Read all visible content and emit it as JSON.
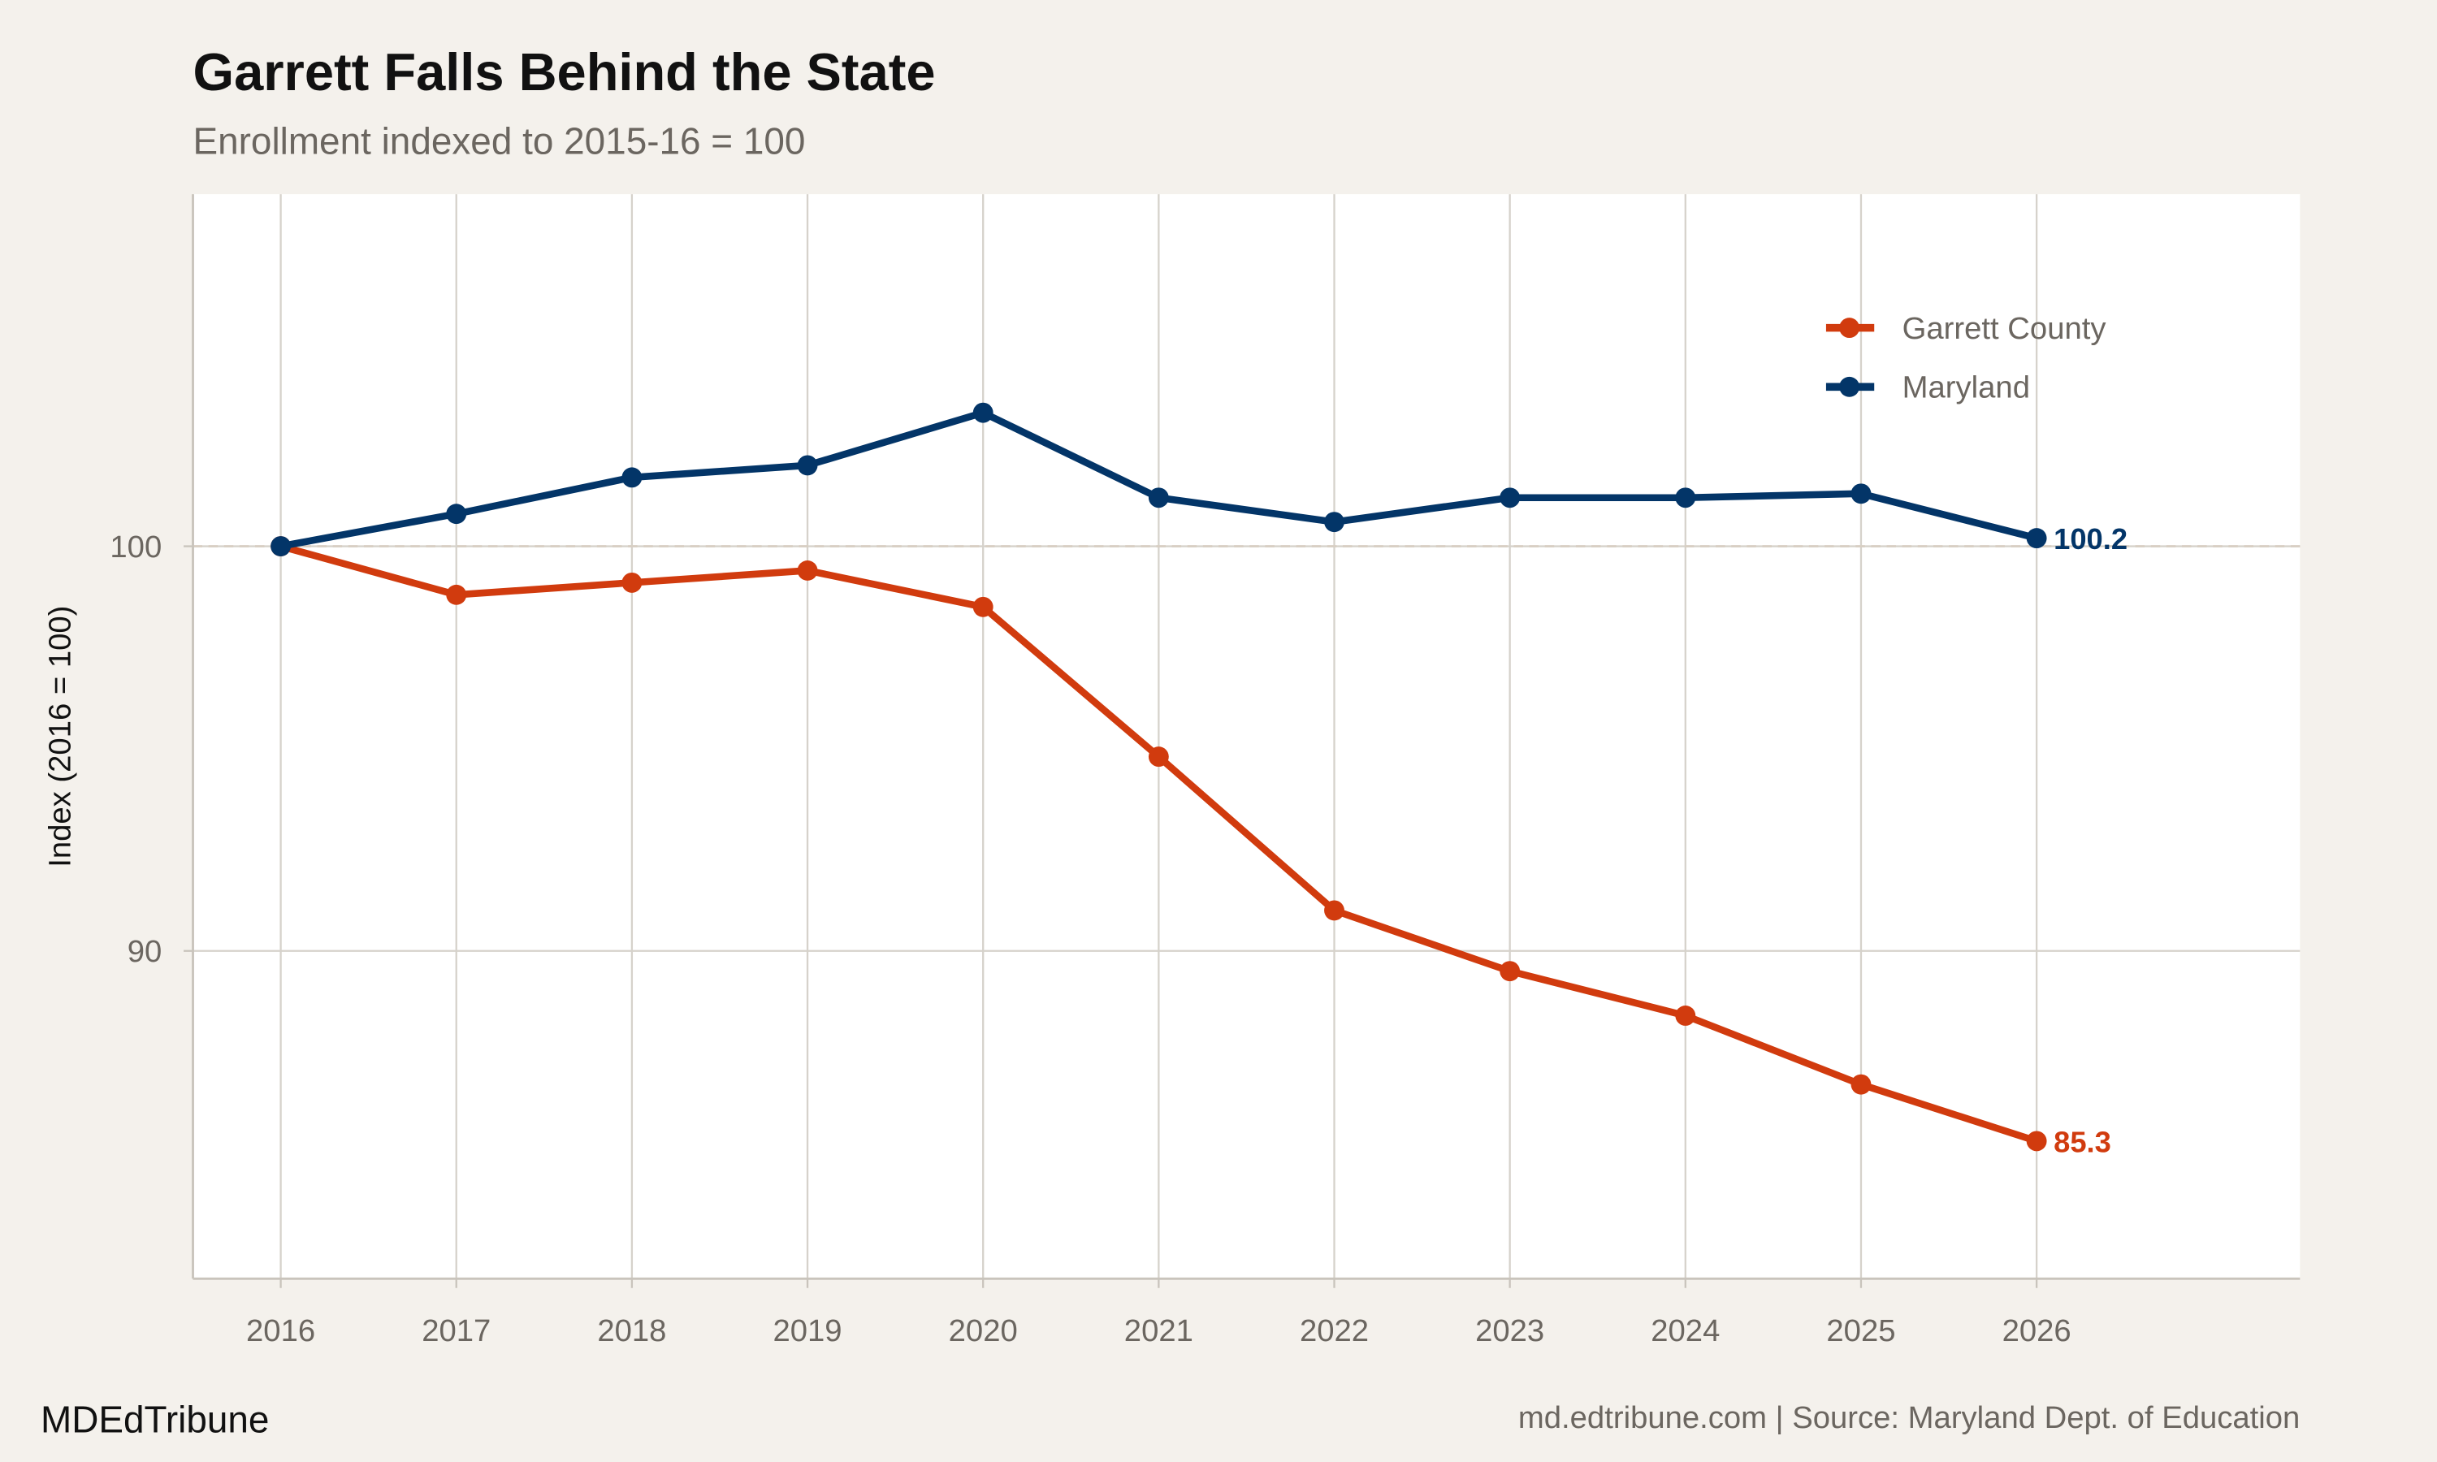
{
  "title": "Garrett Falls Behind the State",
  "subtitle": "Enrollment indexed to 2015-16 = 100",
  "brand": "MDEdTribune",
  "caption": "md.edtribune.com | Source: Maryland Dept. of Education",
  "chart_data": {
    "type": "line",
    "title": "Garrett Falls Behind the State",
    "subtitle": "Enrollment indexed to 2015-16 = 100",
    "xlabel": "",
    "ylabel": "Index (2016 = 100)",
    "x": [
      2016,
      2017,
      2018,
      2019,
      2020,
      2021,
      2022,
      2023,
      2024,
      2025,
      2026
    ],
    "xtick_labels": [
      "2016",
      "2017",
      "2018",
      "2019",
      "2020",
      "2021",
      "2022",
      "2023",
      "2024",
      "2025",
      "2026"
    ],
    "ytick_labels": [
      "90",
      "100"
    ],
    "yticks": [
      90,
      100
    ],
    "xlim": [
      2015.5,
      2027.5
    ],
    "ylim": [
      81.9,
      108.7
    ],
    "reference_line": 100,
    "grid": true,
    "legend_position": "top-right",
    "series": [
      {
        "name": "Garrett County",
        "color": "#d13b0e",
        "values": [
          100,
          98.8,
          99.1,
          99.4,
          98.5,
          94.8,
          91.0,
          89.5,
          88.4,
          86.7,
          85.3
        ],
        "end_label": "85.3"
      },
      {
        "name": "Maryland",
        "color": "#033568",
        "values": [
          100,
          100.8,
          101.7,
          102.0,
          103.3,
          101.2,
          100.6,
          101.2,
          101.2,
          101.3,
          100.2
        ],
        "end_label": "100.2"
      }
    ]
  }
}
